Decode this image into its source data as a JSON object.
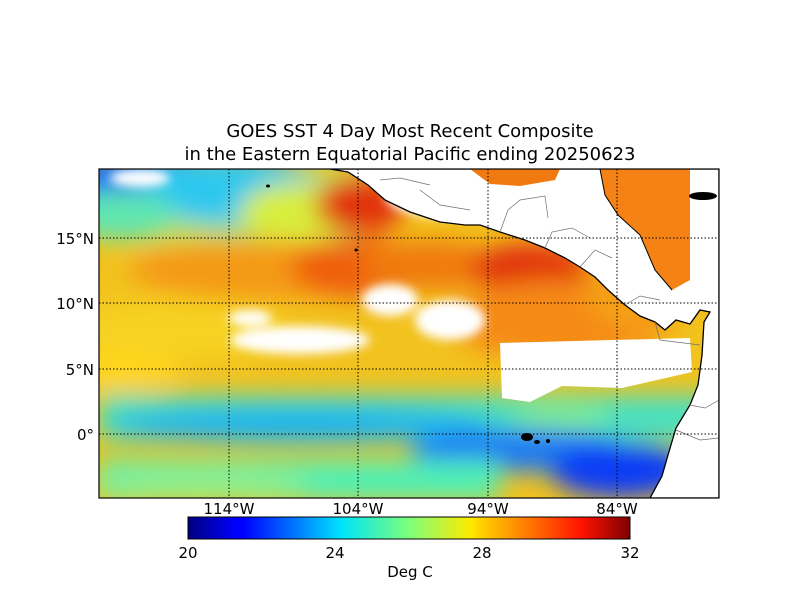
{
  "title": {
    "line1": "GOES SST 4 Day Most Recent Composite",
    "line2": "in the Eastern Equatorial Pacific ending 20250623"
  },
  "axes": {
    "lat_labels": [
      "15°N",
      "10°N",
      "5°N",
      "0°"
    ],
    "lon_labels": [
      "114°W",
      "104°W",
      "94°W",
      "84°W"
    ]
  },
  "colorbar": {
    "ticks": [
      "20",
      "24",
      "28",
      "32"
    ],
    "label": "Deg C",
    "min": 20,
    "max": 32,
    "colormap": "jet"
  },
  "colors": {
    "land": "#ffffff",
    "missing": "#ffffff",
    "coast": "#000000",
    "border": "#707070"
  }
}
